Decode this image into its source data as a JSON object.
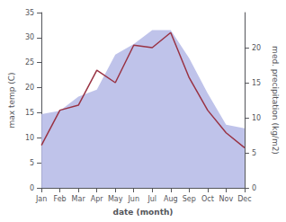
{
  "chart_data": {
    "type": "line",
    "categories": [
      "Jan",
      "Feb",
      "Mar",
      "Apr",
      "May",
      "Jun",
      "Jul",
      "Aug",
      "Sep",
      "Oct",
      "Nov",
      "Dec"
    ],
    "series": [
      {
        "type": "area",
        "color": "#b8bce8",
        "axis": "y2",
        "values": [
          10.5,
          11.0,
          13.0,
          14.0,
          19.0,
          20.5,
          22.5,
          22.5,
          18.5,
          13.5,
          9.0,
          8.5
        ]
      },
      {
        "type": "line",
        "color": "#993344",
        "values": [
          8.5,
          15.5,
          16.5,
          23.5,
          21.0,
          28.5,
          28.0,
          31.0,
          22.0,
          15.5,
          11.0,
          8.0
        ]
      }
    ],
    "xlabel": "date (month)",
    "ylabel": "max temp (C)",
    "y2label": "med. precipitation (kg/m2)",
    "ylim": [
      0,
      35
    ],
    "yticks": [
      0,
      5,
      10,
      15,
      20,
      25,
      30,
      35
    ],
    "y2lim": [
      0,
      25
    ],
    "y2ticks": [
      0,
      5,
      10,
      15,
      20
    ],
    "grid": false
  }
}
